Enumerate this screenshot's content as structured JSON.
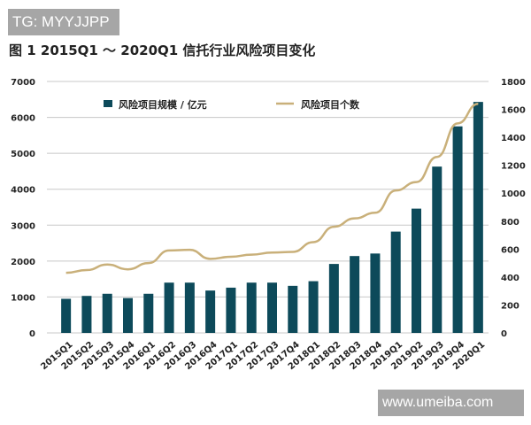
{
  "watermark_top": "TG: MYYJJPP",
  "watermark_bottom": "www.umeiba.com",
  "chart_data": {
    "type": "bar+line",
    "title": "图 1  2015Q1 ～ 2020Q1 信托行业风险项目变化",
    "categories": [
      "2015Q1",
      "2015Q2",
      "2015Q3",
      "2015Q4",
      "2016Q1",
      "2016Q2",
      "2016Q3",
      "2016Q4",
      "2017Q1",
      "2017Q2",
      "2017Q3",
      "2017Q4",
      "2018Q1",
      "2018Q2",
      "2018Q3",
      "2018Q4",
      "2019Q1",
      "2019Q2",
      "2019Q3",
      "2019Q4",
      "2020Q1"
    ],
    "series": [
      {
        "name": "风险项目规模 / 亿元",
        "type": "bar",
        "axis": "left",
        "color": "#0d4a5a",
        "values": [
          950,
          1030,
          1090,
          970,
          1090,
          1400,
          1400,
          1180,
          1260,
          1400,
          1400,
          1310,
          1440,
          1920,
          2140,
          2210,
          2820,
          3460,
          4630,
          5750,
          6430
        ]
      },
      {
        "name": "风险项目个数",
        "type": "line",
        "axis": "right",
        "color": "#c9b07a",
        "values": [
          430,
          450,
          490,
          455,
          500,
          590,
          595,
          530,
          545,
          560,
          575,
          580,
          650,
          760,
          820,
          860,
          1020,
          1080,
          1260,
          1500,
          1640
        ]
      }
    ],
    "left_axis": {
      "ylim": [
        0,
        7000
      ],
      "ticks": [
        "0",
        "1000",
        "2000",
        "3000",
        "4000",
        "5000",
        "6000",
        "7000"
      ]
    },
    "right_axis": {
      "ylim": [
        0,
        1800
      ],
      "ticks": [
        "0",
        "200",
        "400",
        "600",
        "800",
        "1000",
        "1200",
        "1400",
        "1600",
        "1800"
      ]
    },
    "grid": true,
    "legend": "top"
  }
}
